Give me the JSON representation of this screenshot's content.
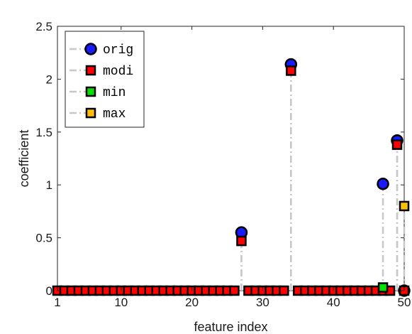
{
  "chart_data": {
    "type": "scatter",
    "xlabel": "feature index",
    "ylabel": "coefficient",
    "xlim": [
      1,
      50
    ],
    "ylim": [
      0,
      2.5
    ],
    "xticks": [
      1,
      10,
      20,
      30,
      40,
      50
    ],
    "yticks": [
      0,
      0.5,
      1,
      1.5,
      2,
      2.5
    ],
    "ytick_labels": [
      "0",
      "0.5",
      "1",
      "1.5",
      "2",
      "2.5"
    ],
    "grid": false,
    "legend_position": "top-left",
    "stems": {
      "style": "dash-dot",
      "color": "#c8c8c8"
    },
    "series": [
      {
        "name": "orig",
        "marker": "circle",
        "color": "#1a1aff",
        "points": [
          [
            27,
            0.55
          ],
          [
            34,
            2.14
          ],
          [
            47,
            1.01
          ],
          [
            49,
            1.42
          ],
          [
            50,
            0
          ]
        ]
      },
      {
        "name": "modi",
        "marker": "square",
        "color": "#ff0000",
        "x": [
          1,
          2,
          3,
          4,
          5,
          6,
          7,
          8,
          9,
          10,
          11,
          12,
          13,
          14,
          15,
          16,
          17,
          18,
          19,
          20,
          21,
          22,
          23,
          24,
          25,
          26,
          27,
          28,
          29,
          30,
          31,
          32,
          33,
          34,
          35,
          36,
          37,
          38,
          39,
          40,
          41,
          42,
          43,
          44,
          45,
          46,
          47,
          48,
          49,
          50
        ],
        "values": [
          0,
          0,
          0,
          0,
          0,
          0,
          0,
          0,
          0,
          0,
          0,
          0,
          0,
          0,
          0,
          0,
          0,
          0,
          0,
          0,
          0,
          0,
          0,
          0,
          0,
          0,
          0.47,
          0,
          0,
          0,
          0,
          0,
          0,
          2.08,
          0,
          0,
          0,
          0,
          0,
          0,
          0,
          0,
          0,
          0,
          0,
          0,
          0,
          0,
          1.38,
          0
        ]
      },
      {
        "name": "min",
        "marker": "square",
        "color": "#00e000",
        "points": [
          [
            47,
            0.03
          ]
        ]
      },
      {
        "name": "max",
        "marker": "square",
        "color": "#ffc000",
        "points": [
          [
            50,
            0.8
          ]
        ]
      }
    ]
  }
}
